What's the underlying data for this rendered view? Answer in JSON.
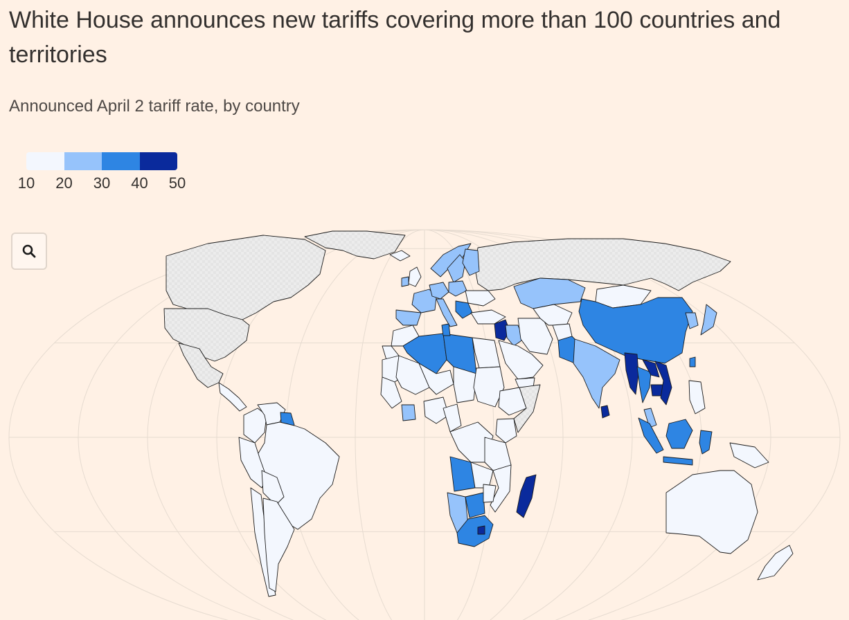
{
  "title": "White House announces new tariffs covering more than 100 countries and territories",
  "subtitle": "Announced April 2 tariff rate, by country",
  "legend": {
    "ticks": [
      "10",
      "20",
      "30",
      "40",
      "50"
    ],
    "colors": [
      "#f3f7fe",
      "#96c3fb",
      "#2e85e3",
      "#0a2a9c"
    ]
  },
  "colors": {
    "background": "#fff1e5",
    "no_data": "#e5e5e5",
    "border": "#1a1a1a",
    "graticule": "#e6dbd0"
  },
  "zoom_button": {
    "icon": "search-icon"
  },
  "map_data": {
    "type": "choropleth",
    "value_label": "tariff rate (%)",
    "bins": [
      [
        10,
        20
      ],
      [
        20,
        30
      ],
      [
        30,
        40
      ],
      [
        40,
        50
      ]
    ],
    "regions": [
      {
        "name": "Canada",
        "bin": -1
      },
      {
        "name": "Greenland",
        "bin": -1
      },
      {
        "name": "United States",
        "bin": -1
      },
      {
        "name": "Mexico",
        "bin": -1
      },
      {
        "name": "Russia",
        "bin": -1
      },
      {
        "name": "Central America",
        "bin": 0
      },
      {
        "name": "Colombia",
        "bin": 0
      },
      {
        "name": "Venezuela",
        "bin": 0
      },
      {
        "name": "Guyana",
        "bin": 2
      },
      {
        "name": "Brazil",
        "bin": 0
      },
      {
        "name": "Peru",
        "bin": 0
      },
      {
        "name": "Bolivia",
        "bin": 0
      },
      {
        "name": "Chile",
        "bin": 0
      },
      {
        "name": "Argentina",
        "bin": 0
      },
      {
        "name": "Iceland",
        "bin": 0
      },
      {
        "name": "Norway",
        "bin": 1
      },
      {
        "name": "Sweden",
        "bin": 1
      },
      {
        "name": "Finland",
        "bin": 1
      },
      {
        "name": "United Kingdom",
        "bin": 0
      },
      {
        "name": "Ireland",
        "bin": 1
      },
      {
        "name": "France",
        "bin": 1
      },
      {
        "name": "Spain",
        "bin": 1
      },
      {
        "name": "Germany",
        "bin": 1
      },
      {
        "name": "Italy",
        "bin": 1
      },
      {
        "name": "Poland",
        "bin": 1
      },
      {
        "name": "Ukraine",
        "bin": 0
      },
      {
        "name": "Balkans",
        "bin": 2
      },
      {
        "name": "Turkey",
        "bin": 0
      },
      {
        "name": "Syria",
        "bin": 3
      },
      {
        "name": "Iraq",
        "bin": 1
      },
      {
        "name": "Iran",
        "bin": 0
      },
      {
        "name": "Saudi Arabia",
        "bin": 0
      },
      {
        "name": "Yemen",
        "bin": 0
      },
      {
        "name": "Kazakhstan",
        "bin": 1
      },
      {
        "name": "Central Asia",
        "bin": 0
      },
      {
        "name": "Afghanistan",
        "bin": 0
      },
      {
        "name": "Pakistan",
        "bin": 2
      },
      {
        "name": "India",
        "bin": 1
      },
      {
        "name": "Sri Lanka",
        "bin": 3
      },
      {
        "name": "Mongolia",
        "bin": 0
      },
      {
        "name": "China",
        "bin": 2
      },
      {
        "name": "Korea",
        "bin": 1
      },
      {
        "name": "Japan",
        "bin": 1
      },
      {
        "name": "Myanmar",
        "bin": 3
      },
      {
        "name": "Thailand",
        "bin": 2
      },
      {
        "name": "Laos",
        "bin": 3
      },
      {
        "name": "Cambodia",
        "bin": 3
      },
      {
        "name": "Vietnam",
        "bin": 3
      },
      {
        "name": "Philippines",
        "bin": 0
      },
      {
        "name": "Taiwan",
        "bin": 2
      },
      {
        "name": "Malaysia",
        "bin": 1
      },
      {
        "name": "Borneo",
        "bin": 2
      },
      {
        "name": "Sumatra",
        "bin": 2
      },
      {
        "name": "Java",
        "bin": 2
      },
      {
        "name": "Sulawesi",
        "bin": 2
      },
      {
        "name": "New Guinea",
        "bin": 0
      },
      {
        "name": "Australia",
        "bin": 0
      },
      {
        "name": "New Zealand",
        "bin": 0
      },
      {
        "name": "Morocco",
        "bin": 0
      },
      {
        "name": "Western Sahara",
        "bin": 0
      },
      {
        "name": "Algeria",
        "bin": 2
      },
      {
        "name": "Libya",
        "bin": 2
      },
      {
        "name": "Tunisia",
        "bin": 2
      },
      {
        "name": "Egypt",
        "bin": 0
      },
      {
        "name": "Mauritania",
        "bin": 0
      },
      {
        "name": "Mali",
        "bin": 0
      },
      {
        "name": "Niger",
        "bin": 0
      },
      {
        "name": "Chad",
        "bin": 0
      },
      {
        "name": "Sudan",
        "bin": 0
      },
      {
        "name": "Ethiopia",
        "bin": 0
      },
      {
        "name": "Somalia",
        "bin": -1
      },
      {
        "name": "West Africa",
        "bin": 0
      },
      {
        "name": "Ivory Coast",
        "bin": 1
      },
      {
        "name": "Nigeria",
        "bin": 0
      },
      {
        "name": "Cameroon",
        "bin": 0
      },
      {
        "name": "DR Congo",
        "bin": 0
      },
      {
        "name": "Kenya",
        "bin": 0
      },
      {
        "name": "Tanzania",
        "bin": 0
      },
      {
        "name": "Angola",
        "bin": 2
      },
      {
        "name": "Zambia",
        "bin": 0
      },
      {
        "name": "Mozambique",
        "bin": 0
      },
      {
        "name": "Namibia",
        "bin": 1
      },
      {
        "name": "Botswana",
        "bin": 2
      },
      {
        "name": "Zimbabwe",
        "bin": 0
      },
      {
        "name": "South Africa",
        "bin": 2
      },
      {
        "name": "Lesotho",
        "bin": 3
      },
      {
        "name": "Madagascar",
        "bin": 3
      }
    ]
  }
}
